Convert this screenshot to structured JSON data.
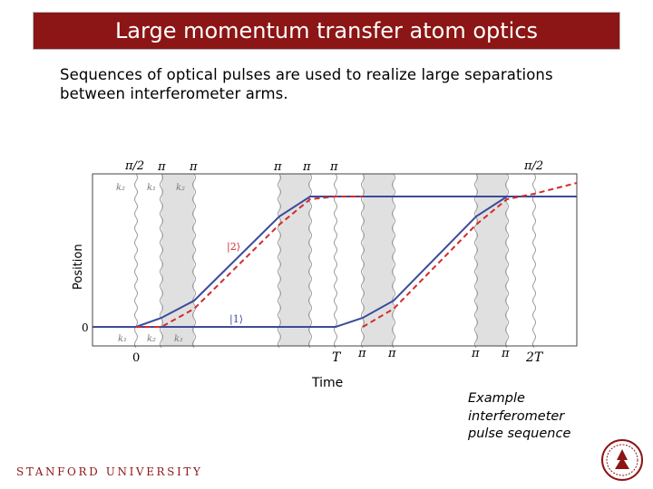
{
  "slide": {
    "title": "Large momentum transfer atom optics",
    "subtitle": "Sequences of optical pulses are used to realize large separations between interferometer arms.",
    "caption_lines": [
      "Example",
      "interferometer",
      "pulse sequence"
    ],
    "footer": "STANFORD UNIVERSITY"
  },
  "diagram": {
    "y_axis_label": "Position",
    "x_axis_label": "Time",
    "y_tick_zero": "0",
    "x_tick_zero": "0",
    "x_tick_T": "T",
    "x_tick_2T": "2T",
    "top_pulse_labels": [
      "π/2",
      "π",
      "π",
      "π",
      "π",
      "π",
      "π/2"
    ],
    "bottom_pulse_labels": [
      "π",
      "π",
      "π",
      "π"
    ],
    "k_labels_top": [
      "k₂",
      "k₁",
      "k₂"
    ],
    "k_labels_bottom": [
      "k₁",
      "k₂",
      "k₁"
    ],
    "state_upper": "|2⟩",
    "state_lower": "|1⟩",
    "colors": {
      "arm_solid": "#3b4a9a",
      "arm_dashed": "#d42a2a",
      "pulse_band": "#e0e0e0",
      "title_bg": "#8c1515"
    }
  }
}
